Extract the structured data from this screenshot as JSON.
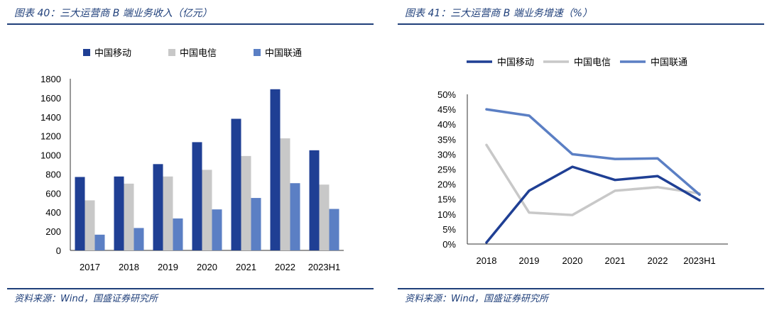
{
  "left": {
    "title": "图表 40：三大运营商 B 端业务收入（亿元）",
    "source": "资料来源：Wind，国盛证券研究所"
  },
  "right": {
    "title": "图表 41：三大运营商 B 端业务增速（%）",
    "source": "资料来源：Wind，国盛证券研究所"
  },
  "chart_data": [
    {
      "type": "bar",
      "title": "",
      "categories": [
        "2017",
        "2018",
        "2019",
        "2020",
        "2021",
        "2022",
        "2023H1"
      ],
      "series": [
        {
          "name": "中国移动",
          "color": "#1f3f94",
          "values": [
            770,
            775,
            905,
            1135,
            1380,
            1690,
            1050
          ]
        },
        {
          "name": "中国电信",
          "color": "#c8c8c8",
          "values": [
            525,
            700,
            775,
            845,
            990,
            1175,
            690
          ]
        },
        {
          "name": "中国联通",
          "color": "#5b7fc4",
          "values": [
            165,
            235,
            335,
            430,
            550,
            705,
            435
          ]
        }
      ],
      "ylim": [
        0,
        1800
      ],
      "yticks": [
        0,
        200,
        400,
        600,
        800,
        1000,
        1200,
        1400,
        1600,
        1800
      ],
      "xlabel": "",
      "ylabel": "",
      "legend": "top",
      "grid": false
    },
    {
      "type": "line",
      "title": "",
      "categories": [
        "2018",
        "2019",
        "2020",
        "2021",
        "2022",
        "2023H1"
      ],
      "series": [
        {
          "name": "中国移动",
          "color": "#1f3f94",
          "values": [
            0.5,
            17.8,
            25.8,
            21.4,
            22.7,
            14.6
          ]
        },
        {
          "name": "中国电信",
          "color": "#c8c8c8",
          "values": [
            33.1,
            10.5,
            9.7,
            17.8,
            19.0,
            16.9
          ]
        },
        {
          "name": "中国联通",
          "color": "#5b7fc4",
          "values": [
            45.0,
            42.9,
            30.0,
            28.4,
            28.6,
            16.5
          ]
        }
      ],
      "ylim": [
        0,
        50
      ],
      "yticks": [
        "0%",
        "5%",
        "10%",
        "15%",
        "20%",
        "25%",
        "30%",
        "35%",
        "40%",
        "45%",
        "50%"
      ],
      "xlabel": "",
      "ylabel": "",
      "legend": "top",
      "grid": false
    }
  ]
}
